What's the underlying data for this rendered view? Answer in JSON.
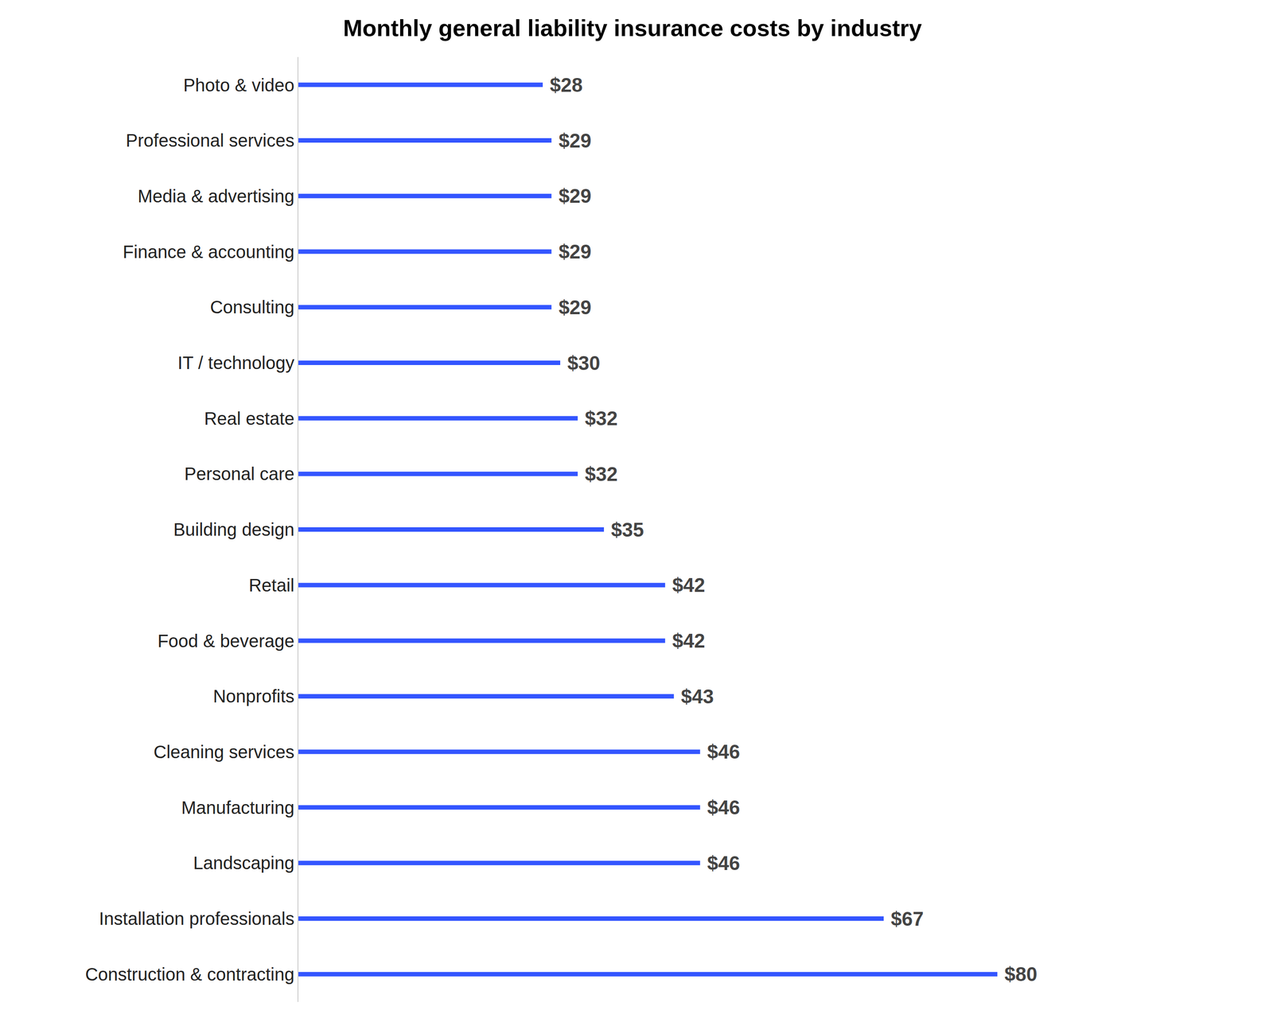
{
  "chart_data": {
    "type": "bar",
    "orientation": "horizontal",
    "title": "Monthly general liability insurance costs by industry",
    "categories": [
      "Construction & contracting",
      "Installation professionals",
      "Landscaping",
      "Manufacturing",
      "Cleaning services",
      "Nonprofits",
      "Food & beverage",
      "Retail",
      "Building design",
      "Personal care",
      "Real estate",
      "IT / technology",
      "Consulting",
      "Finance & accounting",
      "Media & advertising",
      "Professional services",
      "Photo & video"
    ],
    "values": [
      80,
      67,
      46,
      46,
      46,
      43,
      42,
      42,
      35,
      32,
      32,
      30,
      29,
      29,
      29,
      29,
      28
    ],
    "value_labels": [
      "$80",
      "$67",
      "$46",
      "$46",
      "$46",
      "$43",
      "$42",
      "$42",
      "$35",
      "$32",
      "$32",
      "$30",
      "$29",
      "$29",
      "$29",
      "$29",
      "$28"
    ],
    "data_labels": true,
    "color": "#3355ff",
    "xlim": [
      0,
      100
    ],
    "grid": false,
    "tick_labels": "y"
  }
}
